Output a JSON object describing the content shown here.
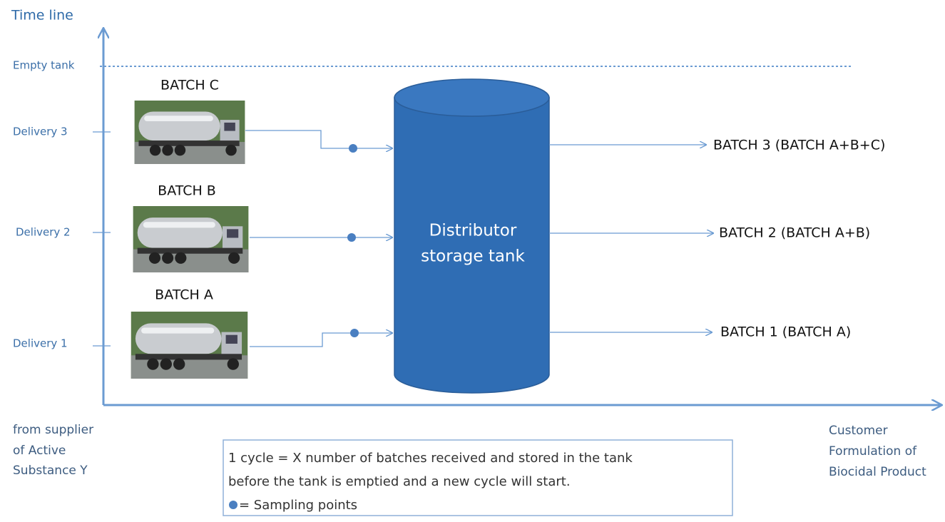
{
  "timeline": {
    "title": "Time line",
    "empty_tank": "Empty tank",
    "deliveries": [
      "Delivery 3",
      "Delivery 2",
      "Delivery 1"
    ]
  },
  "batches": [
    "BATCH C",
    "BATCH B",
    "BATCH A"
  ],
  "tank": {
    "lines": [
      "Distributor",
      "storage tank"
    ]
  },
  "outputs": [
    "BATCH 3 (BATCH A+B+C)",
    "BATCH 2 (BATCH A+B)",
    "BATCH 1 (BATCH A)"
  ],
  "supplier": {
    "lines": [
      "from supplier",
      "of Active",
      "Substance Y"
    ]
  },
  "customer": {
    "lines": [
      "Customer",
      "Formulation of",
      "Biocidal Product"
    ]
  },
  "note": {
    "lines": [
      "1 cycle = X number of batches received and stored in the tank",
      "before the tank is emptied and a new cycle will start."
    ],
    "legend": "= Sampling points"
  }
}
